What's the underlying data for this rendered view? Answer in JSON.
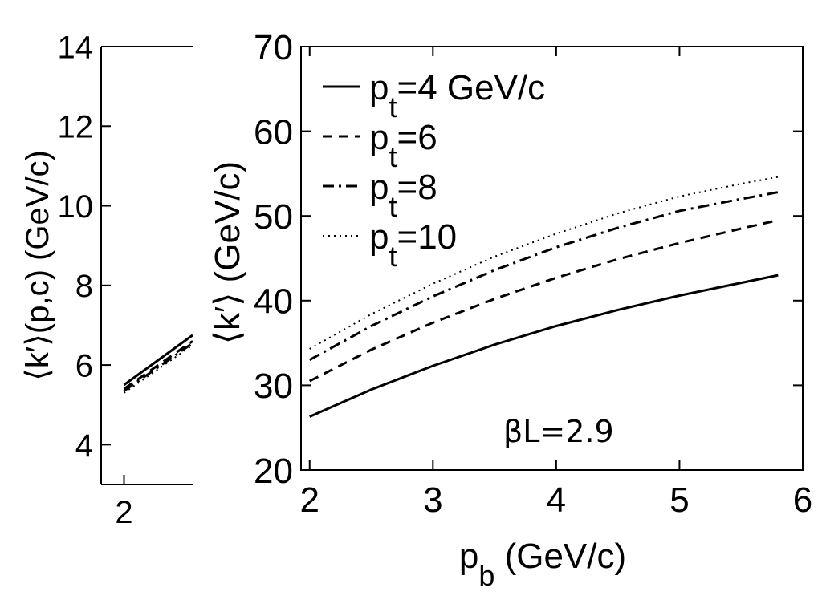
{
  "chart_data": [
    {
      "type": "line",
      "ylabel": "⟨k′⟩(p,c) (GeV/c)",
      "xlabel": "",
      "xlim": [
        1.8,
        2.6
      ],
      "ylim": [
        3,
        14
      ],
      "x_ticks": [
        "2"
      ],
      "y_ticks": [
        "4",
        "6",
        "8",
        "10",
        "12",
        "14"
      ],
      "x_tick_values": [
        2
      ],
      "y_tick_values": [
        4,
        6,
        8,
        10,
        12,
        14
      ],
      "grid": false,
      "series": [
        {
          "style": "solid",
          "x": [
            2.0,
            2.6
          ],
          "y": [
            5.5,
            6.75
          ]
        },
        {
          "style": "dashed",
          "x": [
            2.0,
            2.6
          ],
          "y": [
            5.4,
            6.6
          ]
        },
        {
          "style": "dashdot",
          "x": [
            2.0,
            2.6
          ],
          "y": [
            5.35,
            6.55
          ]
        },
        {
          "style": "dotted",
          "x": [
            2.0,
            2.6
          ],
          "y": [
            5.3,
            6.5
          ]
        }
      ]
    },
    {
      "type": "line",
      "xlabel": "p",
      "xlabel_sub": "b",
      "xlabel_unit": " (GeV/c)",
      "ylabel": "⟨k′⟩ (GeV/c)",
      "xlim": [
        1.93,
        6
      ],
      "ylim": [
        20,
        70
      ],
      "x_ticks": [
        "2",
        "3",
        "4",
        "5",
        "6"
      ],
      "y_ticks": [
        "20",
        "30",
        "40",
        "50",
        "60",
        "70"
      ],
      "x_tick_values": [
        2,
        3,
        4,
        5,
        6
      ],
      "y_tick_values": [
        20,
        30,
        40,
        50,
        60,
        70
      ],
      "grid": false,
      "legend_position": "top-left",
      "annotation": "βL=2.9",
      "series": [
        {
          "name": "p",
          "name_sub": "t",
          "name_rest": "=4 GeV/c",
          "style": "solid",
          "x": [
            2.0,
            2.5,
            3.0,
            3.5,
            4.0,
            4.5,
            5.0,
            5.5,
            5.8
          ],
          "y": [
            26.3,
            29.5,
            32.3,
            34.8,
            37.0,
            38.9,
            40.6,
            42.1,
            43.0
          ]
        },
        {
          "name": "p",
          "name_sub": "t",
          "name_rest": "=6",
          "style": "dashed",
          "x": [
            2.0,
            2.5,
            3.0,
            3.5,
            4.0,
            4.5,
            5.0,
            5.5,
            5.8
          ],
          "y": [
            30.5,
            34.2,
            37.4,
            40.2,
            42.7,
            44.9,
            46.8,
            48.5,
            49.5
          ]
        },
        {
          "name": "p",
          "name_sub": "t",
          "name_rest": "=8",
          "style": "dashdot",
          "x": [
            2.0,
            2.5,
            3.0,
            3.5,
            4.0,
            4.5,
            5.0,
            5.5,
            5.8
          ],
          "y": [
            33.0,
            37.0,
            40.5,
            43.6,
            46.3,
            48.6,
            50.6,
            52.0,
            52.8
          ]
        },
        {
          "name": "p",
          "name_sub": "t",
          "name_rest": "=10",
          "style": "dotted",
          "x": [
            2.0,
            2.5,
            3.0,
            3.5,
            4.0,
            4.5,
            5.0,
            5.5,
            5.8
          ],
          "y": [
            34.3,
            38.4,
            42.0,
            45.2,
            47.9,
            50.3,
            52.3,
            53.8,
            54.6
          ]
        }
      ]
    }
  ]
}
